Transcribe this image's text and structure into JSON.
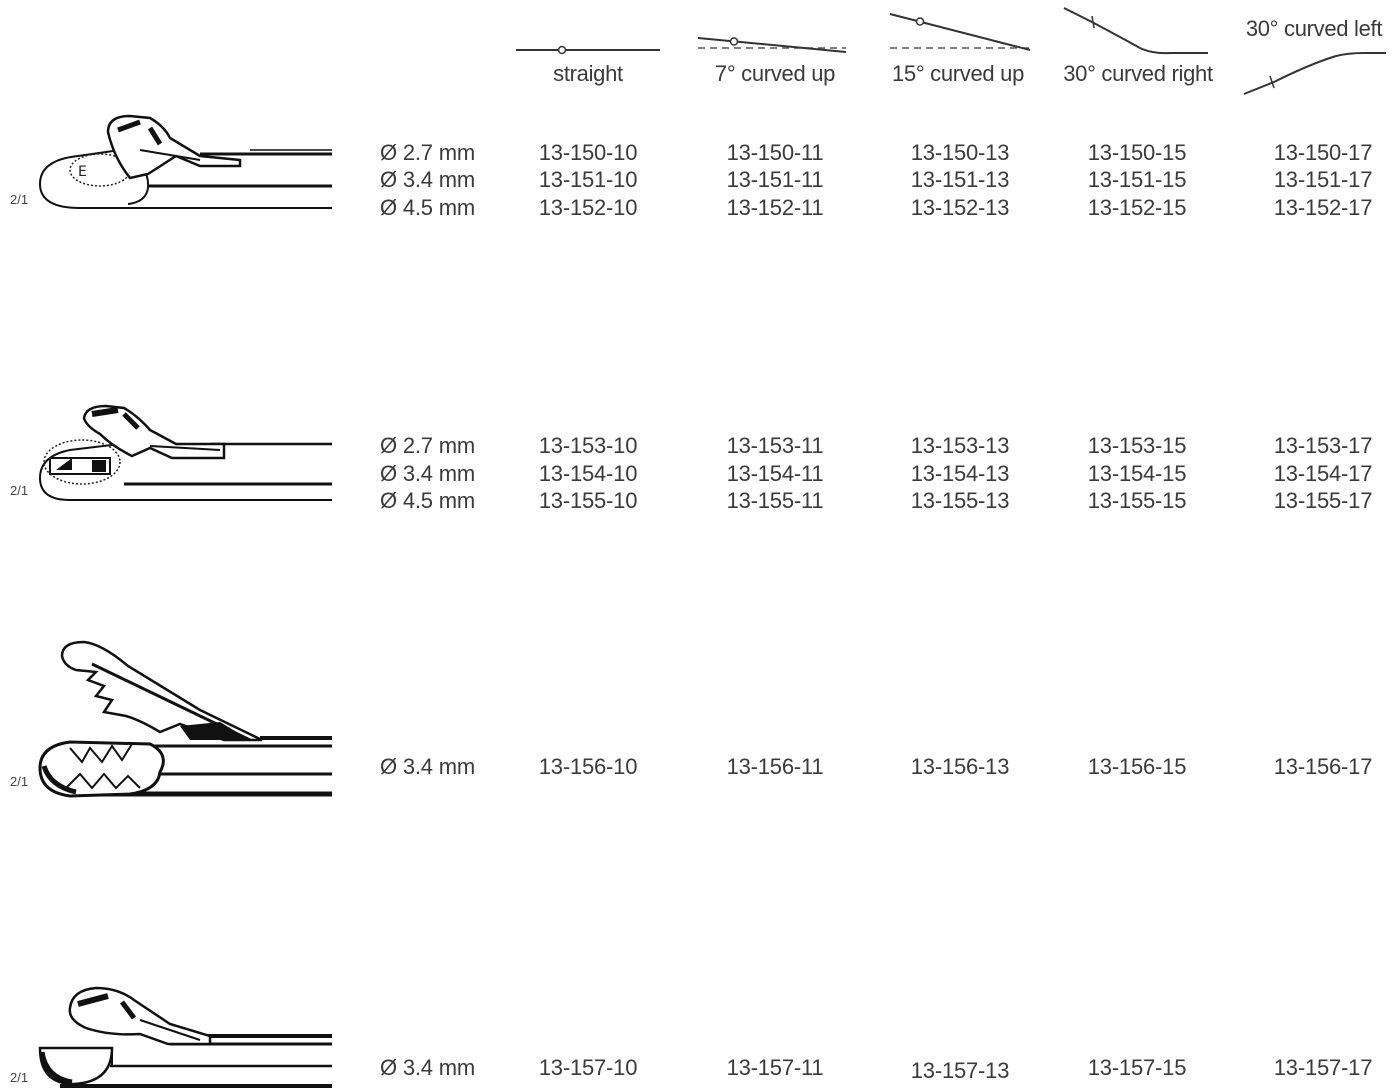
{
  "columns": [
    {
      "label": "straight",
      "icon": "straight-shaft-icon"
    },
    {
      "label": "7° curved up",
      "icon": "curved-up-7-icon"
    },
    {
      "label": "15° curved up",
      "icon": "curved-up-15-icon"
    },
    {
      "label": "30° curved right",
      "icon": "curved-right-30-icon"
    },
    {
      "label": "30° curved left",
      "icon": "curved-left-30-icon"
    }
  ],
  "groups": [
    {
      "scale": "2/1",
      "tip_icon": "scissors-tip-icon",
      "rows": [
        {
          "size": "Ø 2.7 mm",
          "codes": [
            "13-150-10",
            "13-150-11",
            "13-150-13",
            "13-150-15",
            "13-150-17"
          ]
        },
        {
          "size": "Ø 3.4 mm",
          "codes": [
            "13-151-10",
            "13-151-11",
            "13-151-13",
            "13-151-15",
            "13-151-17"
          ]
        },
        {
          "size": "Ø 4.5 mm",
          "codes": [
            "13-152-10",
            "13-152-11",
            "13-152-13",
            "13-152-15",
            "13-152-17"
          ]
        }
      ]
    },
    {
      "scale": "2/1",
      "tip_icon": "punch-tip-icon",
      "rows": [
        {
          "size": "Ø 2.7 mm",
          "codes": [
            "13-153-10",
            "13-153-11",
            "13-153-13",
            "13-153-15",
            "13-153-17"
          ]
        },
        {
          "size": "Ø 3.4 mm",
          "codes": [
            "13-154-10",
            "13-154-11",
            "13-154-13",
            "13-154-15",
            "13-154-17"
          ]
        },
        {
          "size": "Ø 4.5 mm",
          "codes": [
            "13-155-10",
            "13-155-11",
            "13-155-13",
            "13-155-15",
            "13-155-17"
          ]
        }
      ]
    },
    {
      "scale": "2/1",
      "tip_icon": "serrated-grasper-tip-icon",
      "rows": [
        {
          "size": "Ø 3.4 mm",
          "codes": [
            "13-156-10",
            "13-156-11",
            "13-156-13",
            "13-156-15",
            "13-156-17"
          ]
        }
      ]
    },
    {
      "scale": "2/1",
      "tip_icon": "cup-tip-icon",
      "rows": [
        {
          "size": "Ø 3.4 mm",
          "codes": [
            "13-157-10",
            "13-157-11",
            "13-157-13",
            "13-157-15",
            "13-157-17"
          ]
        }
      ]
    }
  ]
}
